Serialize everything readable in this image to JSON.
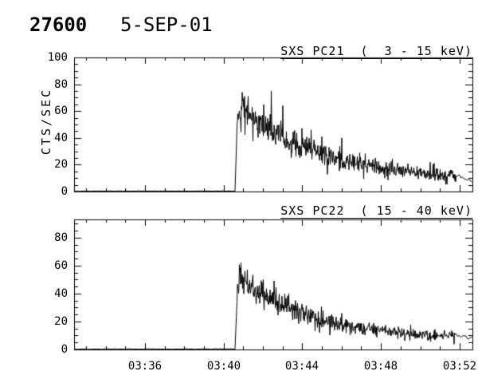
{
  "header": {
    "sequence_number": "27600",
    "date": "5-SEP-01"
  },
  "colors": {
    "foreground": "#000000",
    "background": "#ffffff"
  },
  "chart_data": [
    {
      "type": "line",
      "title": "SXS PC21  (  3 - 15 keV)",
      "ylabel": "CTS/SEC",
      "ylim": [
        0,
        100
      ],
      "yticks": [
        0,
        20,
        40,
        60,
        80,
        100
      ],
      "y_minor_step": 5,
      "x": {
        "xlim_minutes_of_day": [
          212.4,
          232.65
        ],
        "minor_step_minutes": 1,
        "ticks": [
          {
            "t": 216,
            "label": "03:36"
          },
          {
            "t": 220,
            "label": "03:40"
          },
          {
            "t": 224,
            "label": "03:44"
          },
          {
            "t": 228,
            "label": "03:48"
          },
          {
            "t": 232,
            "label": "03:52"
          }
        ]
      },
      "burst_onset_minutes": 220.66,
      "envelope_points": [
        [
          212.4,
          0.3,
          0.25
        ],
        [
          220.6,
          0.3,
          0.25
        ],
        [
          220.7,
          58,
          6
        ],
        [
          220.85,
          61,
          10
        ],
        [
          221.3,
          58,
          10
        ],
        [
          221.9,
          51,
          9
        ],
        [
          222.5,
          45,
          9
        ],
        [
          223.2,
          39,
          8
        ],
        [
          224.0,
          33,
          7
        ],
        [
          224.9,
          28,
          7
        ],
        [
          225.9,
          23,
          6
        ],
        [
          226.9,
          20,
          5
        ],
        [
          227.9,
          17,
          5
        ],
        [
          228.9,
          16,
          4.5
        ],
        [
          229.9,
          14,
          4
        ],
        [
          230.9,
          13,
          4
        ],
        [
          231.8,
          12,
          4
        ],
        [
          232.65,
          8,
          4
        ]
      ],
      "spikes": [
        {
          "t": 220.93,
          "v": 74
        },
        {
          "t": 221.06,
          "v": 71
        },
        {
          "t": 222.42,
          "v": 75
        },
        {
          "t": 223.0,
          "v": 64
        },
        {
          "t": 224.43,
          "v": 46
        },
        {
          "t": 226.0,
          "v": 40
        }
      ],
      "thin_tail_start_minutes": 231.8,
      "seed": 1234567
    },
    {
      "type": "line",
      "title": "SXS PC22  ( 15 - 40 keV)",
      "ylabel": "",
      "ylim": [
        0,
        93
      ],
      "yticks": [
        0,
        20,
        40,
        60,
        80
      ],
      "y_minor_step": 5,
      "x": {
        "xlim_minutes_of_day": [
          212.4,
          232.65
        ],
        "minor_step_minutes": 1,
        "ticks": [
          {
            "t": 216,
            "label": "03:36"
          },
          {
            "t": 220,
            "label": "03:40"
          },
          {
            "t": 224,
            "label": "03:44"
          },
          {
            "t": 228,
            "label": "03:48"
          },
          {
            "t": 232,
            "label": "03:52"
          }
        ]
      },
      "burst_onset_minutes": 220.66,
      "envelope_points": [
        [
          212.4,
          0.3,
          0.25
        ],
        [
          220.6,
          0.3,
          0.25
        ],
        [
          220.7,
          46,
          5
        ],
        [
          220.85,
          48,
          9
        ],
        [
          221.4,
          44,
          9
        ],
        [
          222.1,
          38,
          8
        ],
        [
          222.9,
          32,
          7
        ],
        [
          223.7,
          27,
          6.5
        ],
        [
          224.6,
          23,
          6
        ],
        [
          225.6,
          19,
          5
        ],
        [
          226.6,
          16,
          4.5
        ],
        [
          227.6,
          14,
          4
        ],
        [
          228.6,
          12.5,
          3.5
        ],
        [
          229.6,
          11,
          3.5
        ],
        [
          230.6,
          10,
          3
        ],
        [
          231.8,
          10,
          3
        ],
        [
          232.65,
          8,
          3
        ]
      ],
      "spikes": [
        {
          "t": 220.88,
          "v": 62
        },
        {
          "t": 221.2,
          "v": 57
        },
        {
          "t": 222.0,
          "v": 50
        },
        {
          "t": 223.3,
          "v": 40
        }
      ],
      "thin_tail_start_minutes": 231.8,
      "seed": 987654
    }
  ]
}
